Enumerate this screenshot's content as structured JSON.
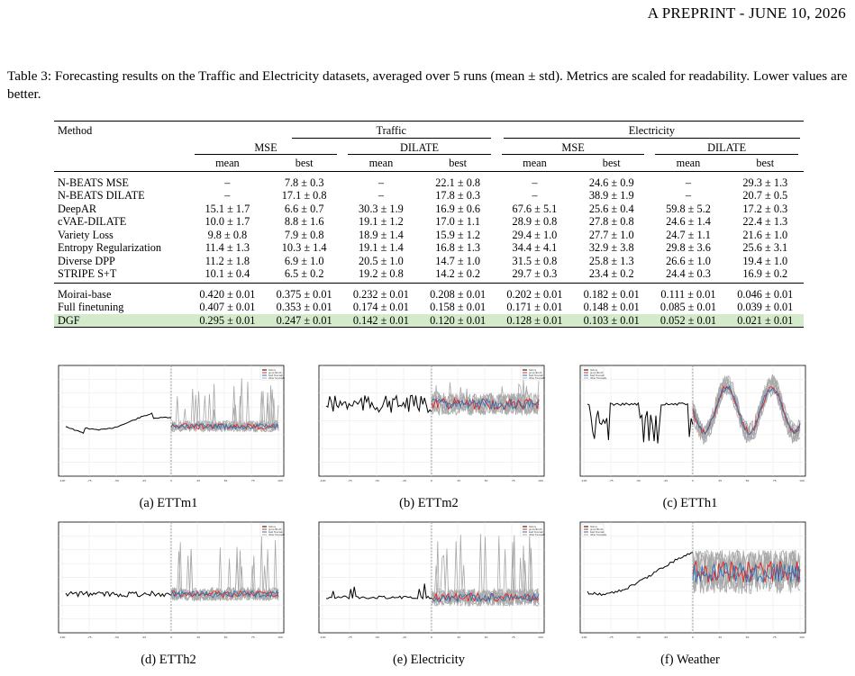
{
  "header": {
    "text_a": "A PREPRINT - JUNE 10, 2026"
  },
  "caption": "Table 3: Forecasting results on the Traffic and Electricity datasets, averaged over 5 runs (mean ± std). Metrics are scaled for readability. Lower values are better.",
  "table": {
    "method_header": "Method",
    "datasets": [
      "Traffic",
      "Electricity"
    ],
    "metrics": [
      "MSE",
      "DILATE",
      "MSE",
      "DILATE"
    ],
    "stats": [
      "mean",
      "best",
      "mean",
      "best",
      "mean",
      "best",
      "mean",
      "best"
    ],
    "group1": [
      {
        "name": "N-BEATS MSE",
        "cells": [
          "–",
          "7.8 ± 0.3",
          "–",
          "22.1 ± 0.8",
          "–",
          "24.6 ± 0.9",
          "–",
          "29.3 ± 1.3"
        ]
      },
      {
        "name": "N-BEATS DILATE",
        "cells": [
          "–",
          "17.1 ± 0.8",
          "–",
          "17.8 ± 0.3",
          "–",
          "38.9 ± 1.9",
          "–",
          "20.7 ± 0.5"
        ]
      },
      {
        "name": "DeepAR",
        "cells": [
          "15.1 ± 1.7",
          "6.6 ± 0.7",
          "30.3 ± 1.9",
          "16.9 ± 0.6",
          "67.6 ± 5.1",
          "25.6 ± 0.4",
          "59.8 ± 5.2",
          "17.2 ± 0.3"
        ]
      },
      {
        "name": "cVAE-DILATE",
        "cells": [
          "10.0 ± 1.7",
          "8.8 ± 1.6",
          "19.1 ± 1.2",
          "17.0 ± 1.1",
          "28.9 ± 0.8",
          "27.8 ± 0.8",
          "24.6 ± 1.4",
          "22.4 ± 1.3"
        ]
      },
      {
        "name": "Variety Loss",
        "cells": [
          "9.8 ± 0.8",
          "7.9 ± 0.8",
          "18.9 ± 1.4",
          "15.9 ± 1.2",
          "29.4 ± 1.0",
          "27.7 ± 1.0",
          "24.7 ± 1.1",
          "21.6 ± 1.0"
        ]
      },
      {
        "name": "Entropy Regularization",
        "cells": [
          "11.4 ± 1.3",
          "10.3 ± 1.4",
          "19.1 ± 1.4",
          "16.8 ± 1.3",
          "34.4 ± 4.1",
          "32.9 ± 3.8",
          "29.8 ± 3.6",
          "25.6 ± 3.1"
        ]
      },
      {
        "name": "Diverse DPP",
        "cells": [
          "11.2 ± 1.8",
          "6.9 ± 1.0",
          "20.5 ± 1.0",
          "14.7 ± 1.0",
          "31.5 ± 0.8",
          "25.8 ± 1.3",
          "26.6 ± 1.0",
          "19.4 ± 1.0"
        ]
      },
      {
        "name": "STRIPE S+T",
        "cells": [
          "10.1 ± 0.4",
          "6.5 ± 0.2",
          "19.2 ± 0.8",
          "14.2 ± 0.2",
          "29.7 ± 0.3",
          "23.4 ± 0.2",
          "24.4 ± 0.3",
          "16.9 ± 0.2"
        ]
      }
    ],
    "group2": [
      {
        "name": "Moirai-base",
        "cells": [
          "0.420 ± 0.01",
          "0.375 ± 0.01",
          "0.232 ± 0.01",
          "0.208 ± 0.01",
          "0.202 ± 0.01",
          "0.182 ± 0.01",
          "0.111 ± 0.01",
          "0.046 ± 0.01"
        ]
      },
      {
        "name": "Full finetuning",
        "cells": [
          "0.407 ± 0.01",
          "0.353 ± 0.01",
          "0.174 ± 0.01",
          "0.158 ± 0.01",
          "0.171 ± 0.01",
          "0.148 ± 0.01",
          "0.085 ± 0.01",
          "0.039 ± 0.01"
        ]
      },
      {
        "name": "DGF",
        "cells": [
          "0.295 ± 0.01",
          "0.247 ± 0.01",
          "0.142 ± 0.01",
          "0.120 ± 0.01",
          "0.128 ± 0.01",
          "0.103 ± 0.01",
          "0.052 ± 0.01",
          "0.021 ± 0.01"
        ]
      }
    ],
    "highlight_color": "#d3ebcb"
  },
  "figures": [
    {
      "caption": "(a) ETTm1",
      "legend": [
        "history",
        "groundtruth",
        "best forecast",
        "other forecasts"
      ]
    },
    {
      "caption": "(b) ETTm2",
      "legend": [
        "history",
        "groundtruth",
        "best forecast",
        "other forecasts"
      ]
    },
    {
      "caption": "(c) ETTh1",
      "legend": [
        "history",
        "groundtruth",
        "best forecast",
        "other forecasts"
      ]
    },
    {
      "caption": "(d) ETTh2",
      "legend": [
        "history",
        "groundtruth",
        "best forecast",
        "other forecasts"
      ]
    },
    {
      "caption": "(e) Electricity",
      "legend": [
        "history",
        "groundtruth",
        "best forecast",
        "other forecasts"
      ]
    },
    {
      "caption": "(f) Weather",
      "legend": [
        "history",
        "groundtruth",
        "best forecast",
        "other forecasts"
      ]
    }
  ],
  "plot_colors": {
    "history": "#000000",
    "groundtruth": "#e8221e",
    "best": "#2e73b5",
    "others": "#a8a8a8"
  },
  "x_ticks": [
    "-100",
    "-75",
    "-50",
    "-25",
    "0",
    "25",
    "50",
    "75",
    "100"
  ]
}
